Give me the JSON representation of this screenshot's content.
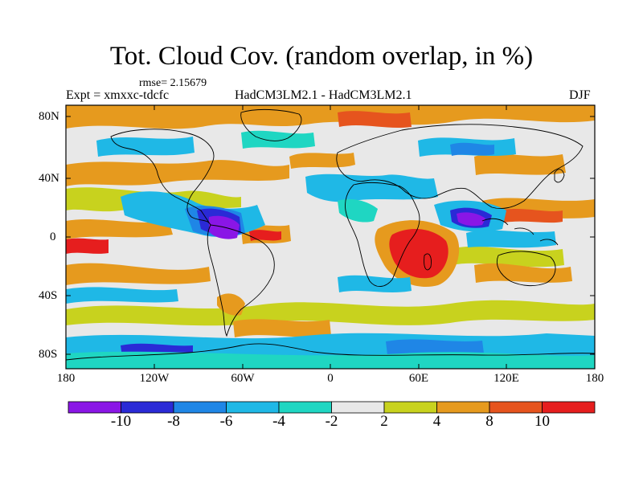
{
  "title": "Tot. Cloud Cov. (random overlap, in %)",
  "rmse": "rmse= 2.15679",
  "experiment": "Expt = xmxxc-tdcfc",
  "models": "HadCM3LM2.1 - HadCM3LM2.1",
  "season": "DJF",
  "lat_labels": [
    "80N",
    "40N",
    "0",
    "40S",
    "80S"
  ],
  "lon_labels": [
    "180",
    "120W",
    "60W",
    "0",
    "60E",
    "120E",
    "180"
  ],
  "colorbar": {
    "tick_labels": [
      "-10",
      "-8",
      "-6",
      "-4",
      "-2",
      "2",
      "4",
      "8",
      "10"
    ],
    "colors": [
      "#8a16e6",
      "#2a2ad6",
      "#1f86e6",
      "#1fb8e6",
      "#1fd6c2",
      "#e8e8e8",
      "#c8d21e",
      "#e69a1e",
      "#e6541e",
      "#e61e1e"
    ]
  },
  "palette": {
    "coast": "#000000",
    "frame": "#000000"
  }
}
